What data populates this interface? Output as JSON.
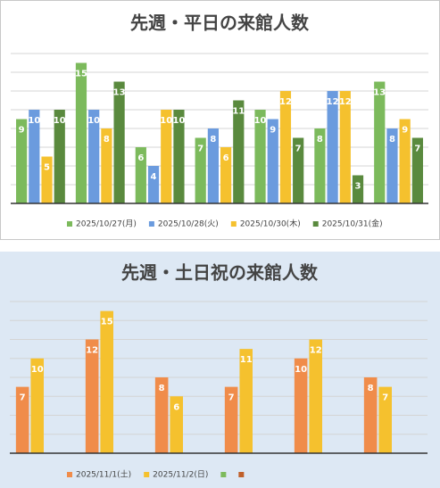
{
  "chart_data": [
    {
      "type": "bar",
      "title": "先週・平日の来館人数",
      "categories": [
        null,
        null,
        null,
        null,
        null,
        null,
        null
      ],
      "series": [
        {
          "name": "2025/10/27(月)",
          "color": "#7cba5c",
          "values": [
            9,
            15,
            6,
            7,
            10,
            8,
            13
          ]
        },
        {
          "name": "2025/10/28(火)",
          "color": "#6b9bde",
          "values": [
            10,
            10,
            4,
            8,
            9,
            12,
            8
          ]
        },
        {
          "name": "2025/10/30(木)",
          "color": "#f5c12e",
          "values": [
            5,
            8,
            10,
            6,
            12,
            12,
            9
          ]
        },
        {
          "name": "2025/10/31(金)",
          "color": "#5a8a3e",
          "values": [
            10,
            13,
            10,
            11,
            7,
            3,
            7
          ]
        }
      ],
      "ylim": [
        0,
        16
      ],
      "yticks": [
        0,
        2,
        4,
        6,
        8,
        10,
        12,
        14,
        16
      ],
      "tick_labels": false,
      "grid": true,
      "legend": "bottom"
    },
    {
      "type": "bar",
      "title": "先週・土日祝の来館人数",
      "categories": [
        null,
        null,
        null,
        null,
        null,
        null
      ],
      "series": [
        {
          "name": "2025/11/1(土)",
          "color": "#f08c4a",
          "values": [
            7,
            12,
            8,
            7,
            10,
            8
          ]
        },
        {
          "name": "2025/11/2(日)",
          "color": "#f5c12e",
          "values": [
            10,
            15,
            6,
            11,
            12,
            7
          ]
        },
        {
          "name": null,
          "color": "#7cba5c",
          "values": [
            null,
            null,
            null,
            null,
            null,
            null
          ]
        },
        {
          "name": null,
          "color": "#c0602a",
          "values": [
            null,
            null,
            null,
            null,
            null,
            null
          ]
        }
      ],
      "ylim": [
        0,
        16
      ],
      "yticks": [
        0,
        2,
        4,
        6,
        8,
        10,
        12,
        14,
        16
      ],
      "tick_labels": false,
      "grid": true,
      "legend": "bottom"
    }
  ]
}
